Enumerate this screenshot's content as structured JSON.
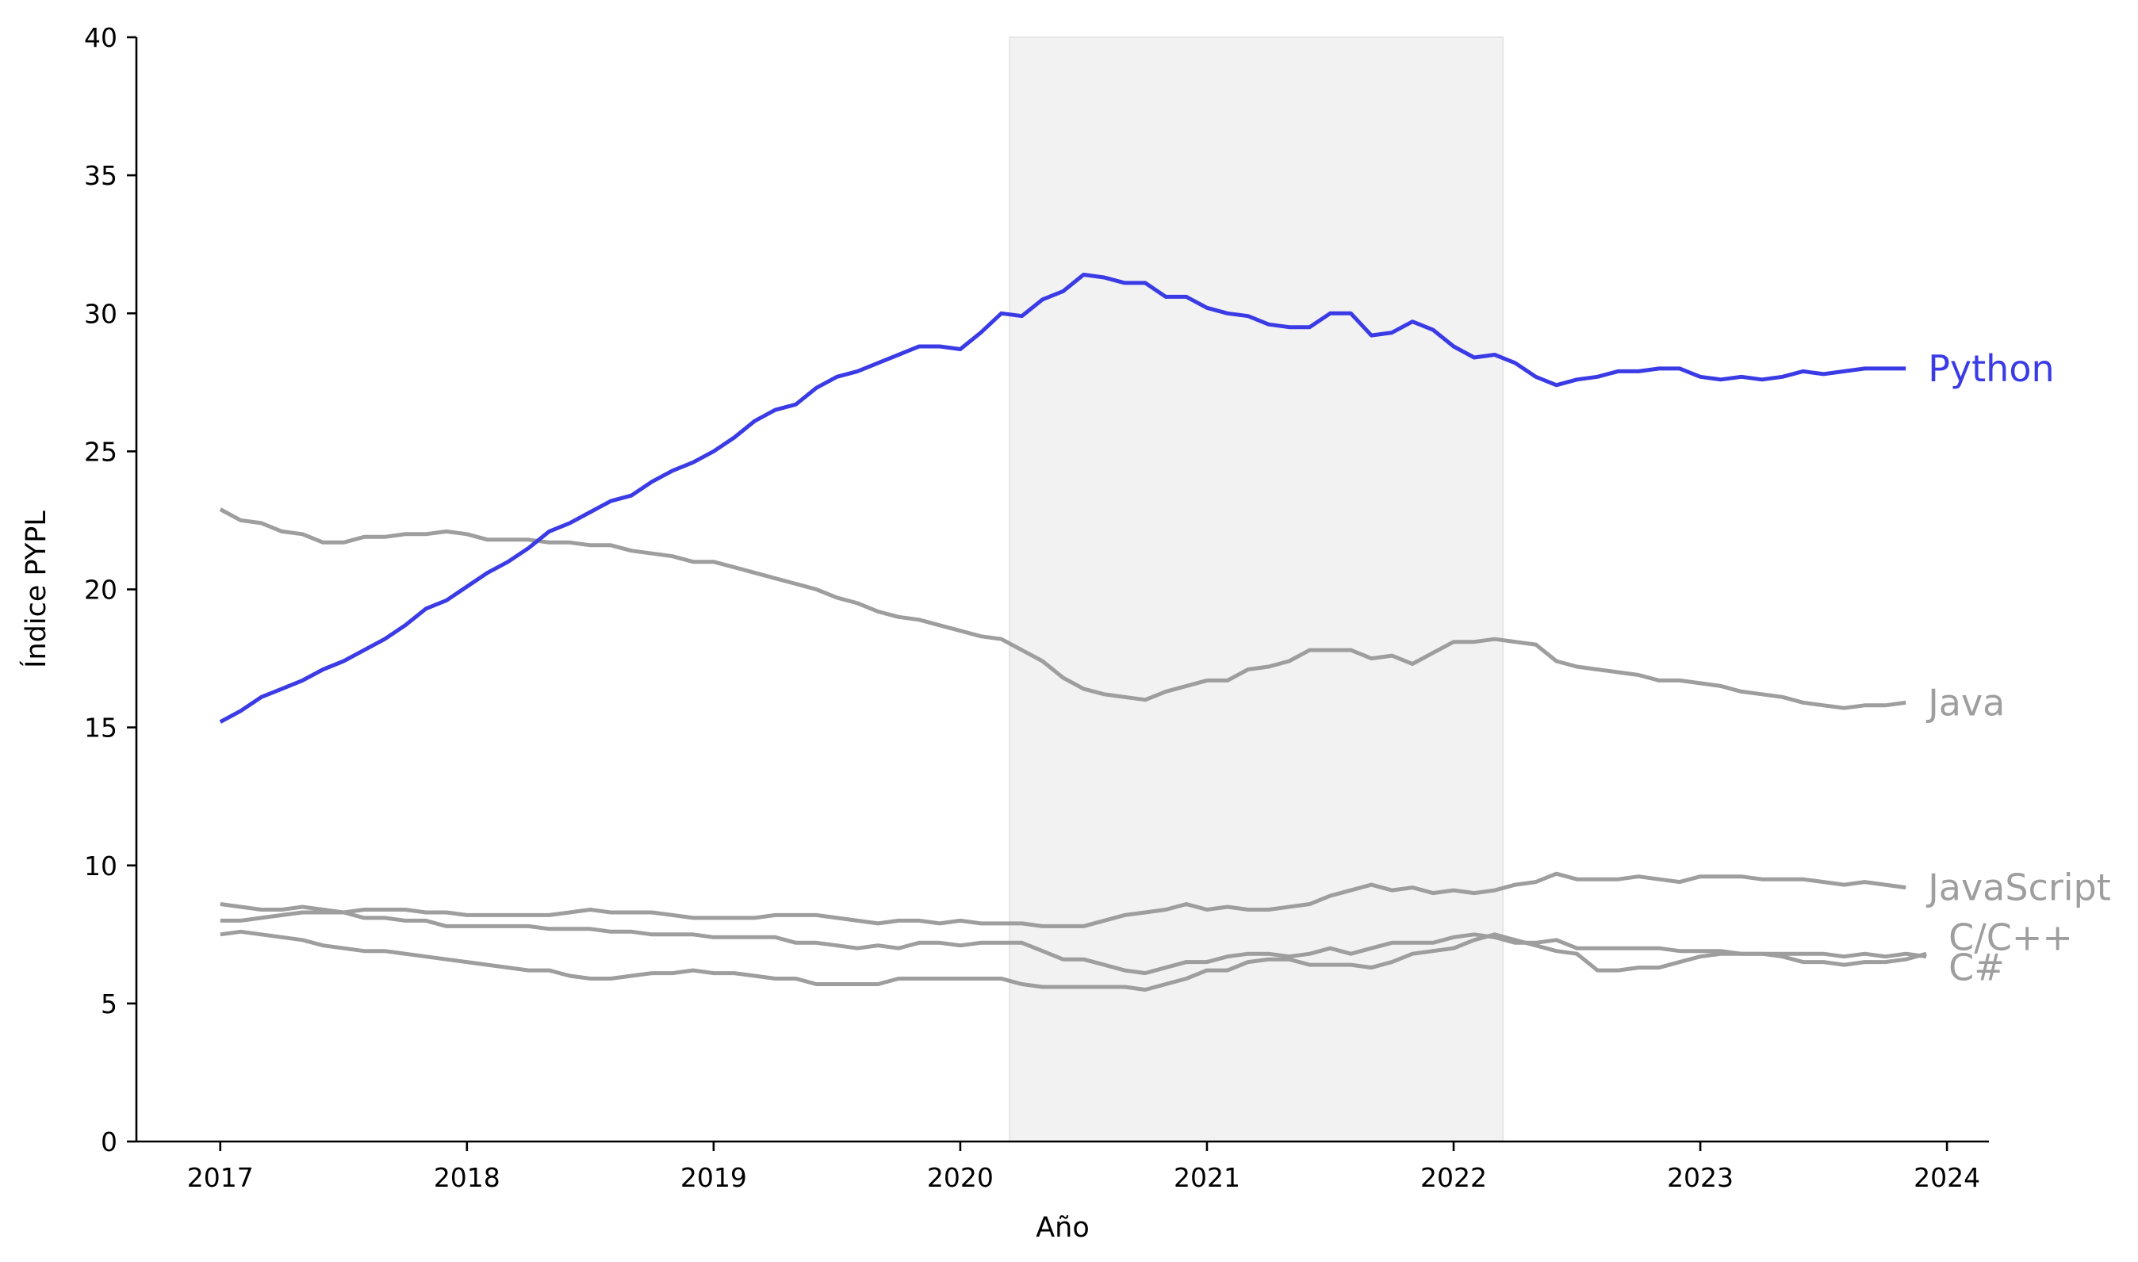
{
  "chart_data": {
    "type": "line",
    "title": "",
    "xlabel": "Año",
    "ylabel": "Índice PYPL",
    "xlim": [
      2016.66,
      2024.17
    ],
    "ylim": [
      0,
      40
    ],
    "x_ticks": [
      "2017",
      "2018",
      "2019",
      "2020",
      "2021",
      "2022",
      "2023",
      "2024"
    ],
    "y_ticks": [
      "0",
      "5",
      "10",
      "15",
      "20",
      "25",
      "30",
      "35",
      "40"
    ],
    "grid": false,
    "legend": "none",
    "shaded_region": {
      "x_start": 2020.2,
      "x_end": 2022.2,
      "color": "#f2f2f2"
    },
    "x_start": 2017.0,
    "x_step": 0.08333,
    "series": [
      {
        "name": "Python",
        "color": "#3b3be6",
        "values": [
          15.2,
          15.6,
          16.1,
          16.4,
          16.7,
          17.1,
          17.4,
          17.8,
          18.2,
          18.7,
          19.3,
          19.6,
          20.1,
          20.6,
          21.0,
          21.5,
          22.1,
          22.4,
          22.8,
          23.2,
          23.4,
          23.9,
          24.3,
          24.6,
          25.0,
          25.5,
          26.1,
          26.5,
          26.7,
          27.3,
          27.7,
          27.9,
          28.2,
          28.5,
          28.8,
          28.8,
          28.7,
          29.3,
          30.0,
          29.9,
          30.5,
          30.8,
          31.4,
          31.3,
          31.1,
          31.1,
          30.6,
          30.6,
          30.2,
          30.0,
          29.9,
          29.6,
          29.5,
          29.5,
          30.0,
          30.0,
          29.2,
          29.3,
          29.7,
          29.4,
          28.8,
          28.4,
          28.5,
          28.2,
          27.7,
          27.4,
          27.6,
          27.7,
          27.9,
          27.9,
          28.0,
          28.0,
          27.7,
          27.6,
          27.7,
          27.6,
          27.7,
          27.9,
          27.8,
          27.9,
          28.0,
          28.0,
          28.0
        ]
      },
      {
        "name": "Java",
        "color": "#9e9e9e",
        "values": [
          22.9,
          22.5,
          22.4,
          22.1,
          22.0,
          21.7,
          21.7,
          21.9,
          21.9,
          22.0,
          22.0,
          22.1,
          22.0,
          21.8,
          21.8,
          21.8,
          21.7,
          21.7,
          21.6,
          21.6,
          21.4,
          21.3,
          21.2,
          21.0,
          21.0,
          20.8,
          20.6,
          20.4,
          20.2,
          20.0,
          19.7,
          19.5,
          19.2,
          19.0,
          18.9,
          18.7,
          18.5,
          18.3,
          18.2,
          17.8,
          17.4,
          16.8,
          16.4,
          16.2,
          16.1,
          16.0,
          16.3,
          16.5,
          16.7,
          16.7,
          17.1,
          17.2,
          17.4,
          17.8,
          17.8,
          17.8,
          17.5,
          17.6,
          17.3,
          17.7,
          18.1,
          18.1,
          18.2,
          18.1,
          18.0,
          17.4,
          17.2,
          17.1,
          17.0,
          16.9,
          16.7,
          16.7,
          16.6,
          16.5,
          16.3,
          16.2,
          16.1,
          15.9,
          15.8,
          15.7,
          15.8,
          15.8,
          15.9
        ]
      },
      {
        "name": "JavaScript",
        "color": "#9e9e9e",
        "values": [
          8.6,
          8.5,
          8.4,
          8.4,
          8.5,
          8.4,
          8.3,
          8.4,
          8.4,
          8.4,
          8.3,
          8.3,
          8.2,
          8.2,
          8.2,
          8.2,
          8.2,
          8.3,
          8.4,
          8.3,
          8.3,
          8.3,
          8.2,
          8.1,
          8.1,
          8.1,
          8.1,
          8.2,
          8.2,
          8.2,
          8.1,
          8.0,
          7.9,
          8.0,
          8.0,
          7.9,
          8.0,
          7.9,
          7.9,
          7.9,
          7.8,
          7.8,
          7.8,
          8.0,
          8.2,
          8.3,
          8.4,
          8.6,
          8.4,
          8.5,
          8.4,
          8.4,
          8.5,
          8.6,
          8.9,
          9.1,
          9.3,
          9.1,
          9.2,
          9.0,
          9.1,
          9.0,
          9.1,
          9.3,
          9.4,
          9.7,
          9.5,
          9.5,
          9.5,
          9.6,
          9.5,
          9.4,
          9.6,
          9.6,
          9.6,
          9.5,
          9.5,
          9.5,
          9.4,
          9.3,
          9.4,
          9.3,
          9.2
        ]
      },
      {
        "name": "C/C++",
        "color": "#9e9e9e",
        "values": [
          8.0,
          8.0,
          8.1,
          8.2,
          8.3,
          8.3,
          8.3,
          8.1,
          8.1,
          8.0,
          8.0,
          7.8,
          7.8,
          7.8,
          7.8,
          7.8,
          7.7,
          7.7,
          7.7,
          7.6,
          7.6,
          7.5,
          7.5,
          7.5,
          7.4,
          7.4,
          7.4,
          7.4,
          7.2,
          7.2,
          7.1,
          7.0,
          7.1,
          7.0,
          7.2,
          7.2,
          7.1,
          7.2,
          7.2,
          7.2,
          6.9,
          6.6,
          6.6,
          6.4,
          6.2,
          6.1,
          6.3,
          6.5,
          6.5,
          6.7,
          6.8,
          6.8,
          6.7,
          6.8,
          7.0,
          6.8,
          7.0,
          7.2,
          7.2,
          7.2,
          7.4,
          7.5,
          7.4,
          7.2,
          7.2,
          7.3,
          7.0,
          7.0,
          7.0,
          7.0,
          7.0,
          6.9,
          6.9,
          6.9,
          6.8,
          6.8,
          6.8,
          6.8,
          6.8,
          6.7,
          6.8,
          6.7,
          6.8,
          6.7
        ]
      },
      {
        "name": "C#",
        "color": "#9e9e9e",
        "values": [
          7.5,
          7.6,
          7.5,
          7.4,
          7.3,
          7.1,
          7.0,
          6.9,
          6.9,
          6.8,
          6.7,
          6.6,
          6.5,
          6.4,
          6.3,
          6.2,
          6.2,
          6.0,
          5.9,
          5.9,
          6.0,
          6.1,
          6.1,
          6.2,
          6.1,
          6.1,
          6.0,
          5.9,
          5.9,
          5.7,
          5.7,
          5.7,
          5.7,
          5.9,
          5.9,
          5.9,
          5.9,
          5.9,
          5.9,
          5.7,
          5.6,
          5.6,
          5.6,
          5.6,
          5.6,
          5.5,
          5.7,
          5.9,
          6.2,
          6.2,
          6.5,
          6.6,
          6.6,
          6.4,
          6.4,
          6.4,
          6.3,
          6.5,
          6.8,
          6.9,
          7.0,
          7.3,
          7.5,
          7.3,
          7.1,
          6.9,
          6.8,
          6.2,
          6.2,
          6.3,
          6.3,
          6.5,
          6.7,
          6.8,
          6.8,
          6.8,
          6.7,
          6.5,
          6.5,
          6.4,
          6.5,
          6.5,
          6.6,
          6.8
        ]
      }
    ]
  }
}
